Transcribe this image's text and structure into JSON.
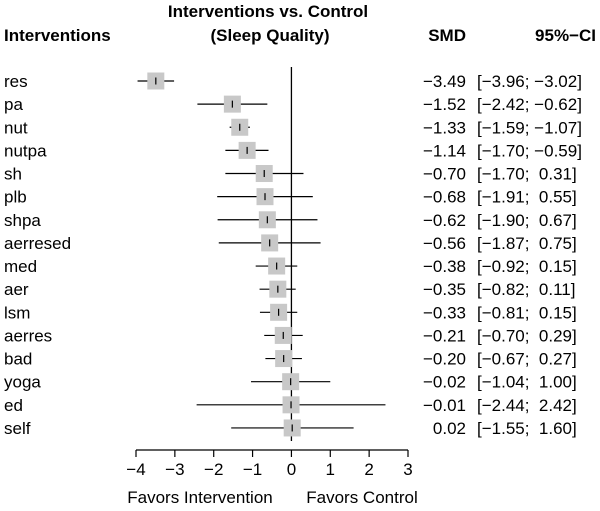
{
  "chart_data": {
    "type": "forest",
    "title_lines": [
      "Interventions vs. Control",
      "(Sleep Quality)"
    ],
    "column_headers": {
      "interventions": "Interventions",
      "smd": "SMD",
      "ci": "95%−CI"
    },
    "xlim": [
      -4,
      3
    ],
    "ticks": [
      -4,
      -3,
      -2,
      -1,
      0,
      1,
      2,
      3
    ],
    "tick_labels": [
      "−4",
      "−3",
      "−2",
      "−1",
      "0",
      "1",
      "2",
      "3"
    ],
    "reference_line": 0,
    "favors_left": "Favors Intervention",
    "favors_right": "Favors Control",
    "studies": [
      {
        "name": "res",
        "smd": -3.49,
        "lower": -3.96,
        "upper": -3.02,
        "smd_text": "−3.49",
        "ci_text": "[−3.96; −3.02]"
      },
      {
        "name": "pa",
        "smd": -1.52,
        "lower": -2.42,
        "upper": -0.62,
        "smd_text": "−1.52",
        "ci_text": "[−2.42; −0.62]"
      },
      {
        "name": "nut",
        "smd": -1.33,
        "lower": -1.59,
        "upper": -1.07,
        "smd_text": "−1.33",
        "ci_text": "[−1.59; −1.07]"
      },
      {
        "name": "nutpa",
        "smd": -1.14,
        "lower": -1.7,
        "upper": -0.59,
        "smd_text": "−1.14",
        "ci_text": "[−1.70; −0.59]"
      },
      {
        "name": "sh",
        "smd": -0.7,
        "lower": -1.7,
        "upper": 0.31,
        "smd_text": "−0.70",
        "ci_text": "[−1.70;  0.31]"
      },
      {
        "name": "plb",
        "smd": -0.68,
        "lower": -1.91,
        "upper": 0.55,
        "smd_text": "−0.68",
        "ci_text": "[−1.91;  0.55]"
      },
      {
        "name": "shpa",
        "smd": -0.62,
        "lower": -1.9,
        "upper": 0.67,
        "smd_text": "−0.62",
        "ci_text": "[−1.90;  0.67]"
      },
      {
        "name": "aerresed",
        "smd": -0.56,
        "lower": -1.87,
        "upper": 0.75,
        "smd_text": "−0.56",
        "ci_text": "[−1.87;  0.75]"
      },
      {
        "name": "med",
        "smd": -0.38,
        "lower": -0.92,
        "upper": 0.15,
        "smd_text": "−0.38",
        "ci_text": "[−0.92;  0.15]"
      },
      {
        "name": "aer",
        "smd": -0.35,
        "lower": -0.82,
        "upper": 0.11,
        "smd_text": "−0.35",
        "ci_text": "[−0.82;  0.11]"
      },
      {
        "name": "lsm",
        "smd": -0.33,
        "lower": -0.81,
        "upper": 0.15,
        "smd_text": "−0.33",
        "ci_text": "[−0.81;  0.15]"
      },
      {
        "name": "aerres",
        "smd": -0.21,
        "lower": -0.7,
        "upper": 0.29,
        "smd_text": "−0.21",
        "ci_text": "[−0.70;  0.29]"
      },
      {
        "name": "bad",
        "smd": -0.2,
        "lower": -0.67,
        "upper": 0.27,
        "smd_text": "−0.20",
        "ci_text": "[−0.67;  0.27]"
      },
      {
        "name": "yoga",
        "smd": -0.02,
        "lower": -1.04,
        "upper": 1.0,
        "smd_text": "−0.02",
        "ci_text": "[−1.04;  1.00]"
      },
      {
        "name": "ed",
        "smd": -0.01,
        "lower": -2.44,
        "upper": 2.42,
        "smd_text": "−0.01",
        "ci_text": "[−2.44;  2.42]"
      },
      {
        "name": "self",
        "smd": 0.02,
        "lower": -1.55,
        "upper": 1.6,
        "smd_text": "0.02",
        "ci_text": "[−1.55;  1.60]"
      }
    ],
    "colors": {
      "square": "#c8c8c8",
      "line": "#000000"
    }
  }
}
